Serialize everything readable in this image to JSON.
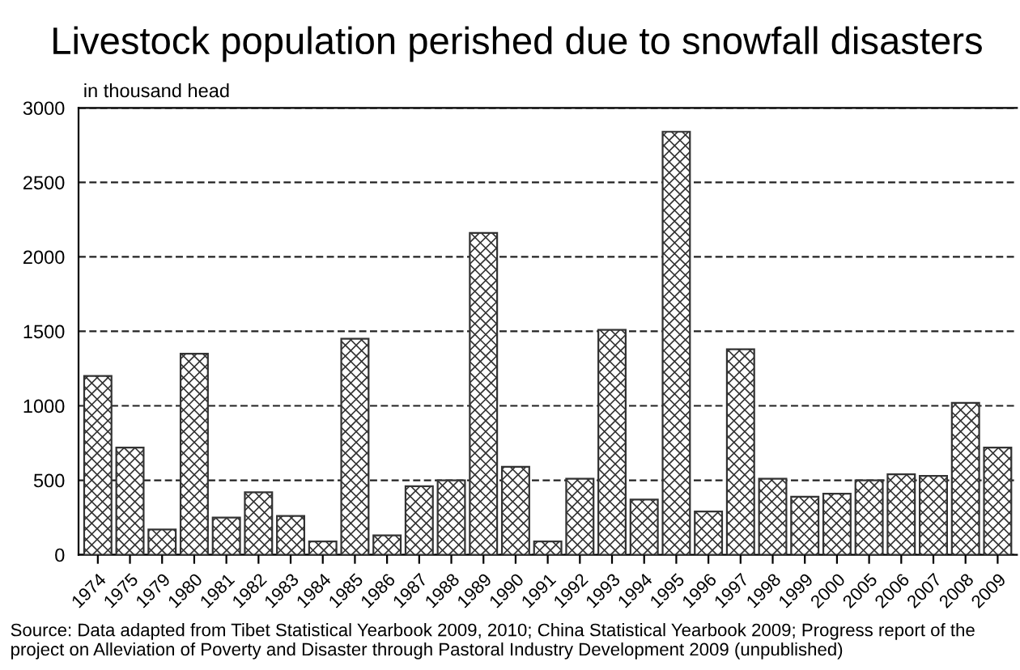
{
  "chart_data": {
    "type": "bar",
    "title": "Livestock population perished due to snowfall disasters",
    "ylabel": "in thousand head",
    "categories": [
      "1974",
      "1975",
      "1979",
      "1980",
      "1981",
      "1982",
      "1983",
      "1984",
      "1985",
      "1986",
      "1987",
      "1988",
      "1989",
      "1990",
      "1991",
      "1992",
      "1993",
      "1994",
      "1995",
      "1996",
      "1997",
      "1998",
      "1999",
      "2000",
      "2005",
      "2006",
      "2007",
      "2008",
      "2009"
    ],
    "values": [
      1200,
      720,
      170,
      1350,
      250,
      420,
      260,
      90,
      1450,
      130,
      460,
      500,
      2160,
      590,
      90,
      510,
      1510,
      370,
      2840,
      290,
      1380,
      510,
      390,
      410,
      500,
      540,
      530,
      1020,
      720
    ],
    "color": "#333333",
    "ylim": [
      0,
      3000
    ],
    "yticks": [
      0,
      500,
      1000,
      1500,
      2000,
      2500,
      3000
    ],
    "grid": "y",
    "line_style": "dashed",
    "annotations": [
      "Source: Data adapted from Tibet Statistical Yearbook 2009, 2010; China Statistical Yearbook 2009; Progress report of the project on Alleviation of Poverty and Disaster through Pastoral Industry Development 2009 (unpublished)"
    ]
  }
}
